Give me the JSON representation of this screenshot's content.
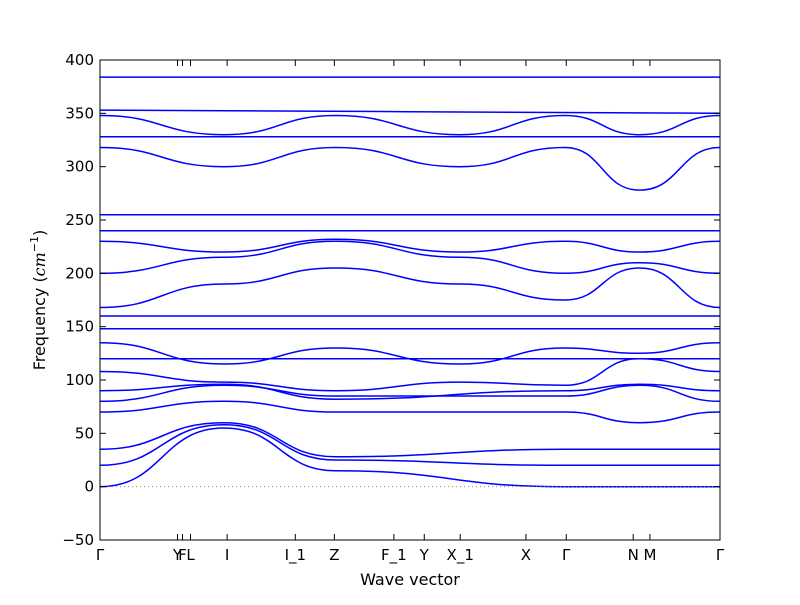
{
  "chart_data": {
    "type": "line",
    "title": "",
    "xlabel": "Wave vector",
    "ylabel_prefix": "Frequency (",
    "ylabel_unit": "cm",
    "ylabel_exp": "−1",
    "ylabel_suffix": ")",
    "ylim": [
      -50,
      400
    ],
    "yticks": [
      -50,
      0,
      50,
      100,
      150,
      200,
      250,
      300,
      350,
      400
    ],
    "xlim": [
      0,
      1
    ],
    "grid": false,
    "legend": "none",
    "line_color": "#0000ff",
    "zero_line_color": "#888888",
    "high_symmetry_points": [
      {
        "label": "Γ",
        "x": 0.0
      },
      {
        "label": "Y",
        "x": 0.125
      },
      {
        "label": "F",
        "x": 0.133
      },
      {
        "label": "L",
        "x": 0.146
      },
      {
        "label": "I",
        "x": 0.205
      },
      {
        "label": "I_1",
        "x": 0.315
      },
      {
        "label": "Z",
        "x": 0.378
      },
      {
        "label": "F_1",
        "x": 0.474
      },
      {
        "label": "Y",
        "x": 0.523
      },
      {
        "label": "X_1",
        "x": 0.581
      },
      {
        "label": "X",
        "x": 0.687
      },
      {
        "label": "Γ",
        "x": 0.752
      },
      {
        "label": "N",
        "x": 0.86
      },
      {
        "label": "M",
        "x": 0.887
      },
      {
        "label": "Γ",
        "x": 1.0
      }
    ],
    "series": [
      {
        "x": [
          0,
          0.2,
          0.38,
          0.75,
          1
        ],
        "y": [
          0,
          55,
          15,
          0,
          0
        ]
      },
      {
        "x": [
          0,
          0.2,
          0.38,
          0.75,
          1
        ],
        "y": [
          20,
          58,
          25,
          20,
          20
        ]
      },
      {
        "x": [
          0,
          0.2,
          0.38,
          0.75,
          1
        ],
        "y": [
          35,
          60,
          28,
          35,
          35
        ]
      },
      {
        "x": [
          0,
          0.2,
          0.38,
          0.75,
          0.87,
          1
        ],
        "y": [
          70,
          80,
          70,
          70,
          60,
          70
        ]
      },
      {
        "x": [
          0,
          0.2,
          0.38,
          0.75,
          0.87,
          1
        ],
        "y": [
          80,
          95,
          85,
          85,
          95,
          80
        ]
      },
      {
        "x": [
          0,
          0.2,
          0.38,
          0.75,
          0.87,
          1
        ],
        "y": [
          90,
          96,
          82,
          90,
          96,
          90
        ]
      },
      {
        "x": [
          0,
          0.2,
          0.38,
          0.58,
          0.75,
          0.87,
          1
        ],
        "y": [
          108,
          98,
          90,
          98,
          95,
          120,
          108
        ]
      },
      {
        "x": [
          0,
          0.2,
          0.38,
          0.58,
          0.75,
          0.87,
          1
        ],
        "y": [
          120,
          120,
          120,
          120,
          120,
          120,
          120
        ]
      },
      {
        "x": [
          0,
          0.2,
          0.38,
          0.58,
          0.75,
          0.87,
          1
        ],
        "y": [
          135,
          115,
          130,
          115,
          130,
          125,
          135
        ]
      },
      {
        "x": [
          0,
          1
        ],
        "y": [
          148,
          148
        ]
      },
      {
        "x": [
          0,
          1
        ],
        "y": [
          160,
          160
        ]
      },
      {
        "x": [
          0,
          0.2,
          0.38,
          0.58,
          0.75,
          0.87,
          1
        ],
        "y": [
          168,
          190,
          205,
          190,
          175,
          205,
          168
        ]
      },
      {
        "x": [
          0,
          0.2,
          0.38,
          0.58,
          0.75,
          0.87,
          1
        ],
        "y": [
          200,
          215,
          230,
          215,
          200,
          210,
          200
        ]
      },
      {
        "x": [
          0,
          0.2,
          0.38,
          0.58,
          0.75,
          0.87,
          1
        ],
        "y": [
          230,
          220,
          232,
          220,
          230,
          220,
          230
        ]
      },
      {
        "x": [
          0,
          1
        ],
        "y": [
          240,
          240
        ]
      },
      {
        "x": [
          0,
          1
        ],
        "y": [
          255,
          255
        ]
      },
      {
        "x": [
          0,
          0.2,
          0.38,
          0.58,
          0.75,
          0.87,
          1
        ],
        "y": [
          318,
          300,
          318,
          300,
          318,
          278,
          318
        ]
      },
      {
        "x": [
          0,
          1
        ],
        "y": [
          328,
          328
        ]
      },
      {
        "x": [
          0,
          0.2,
          0.38,
          0.58,
          0.75,
          0.87,
          1
        ],
        "y": [
          348,
          330,
          348,
          330,
          348,
          330,
          348
        ]
      },
      {
        "x": [
          0,
          1
        ],
        "y": [
          353,
          350
        ]
      },
      {
        "x": [
          0,
          1
        ],
        "y": [
          384,
          384
        ]
      }
    ]
  }
}
